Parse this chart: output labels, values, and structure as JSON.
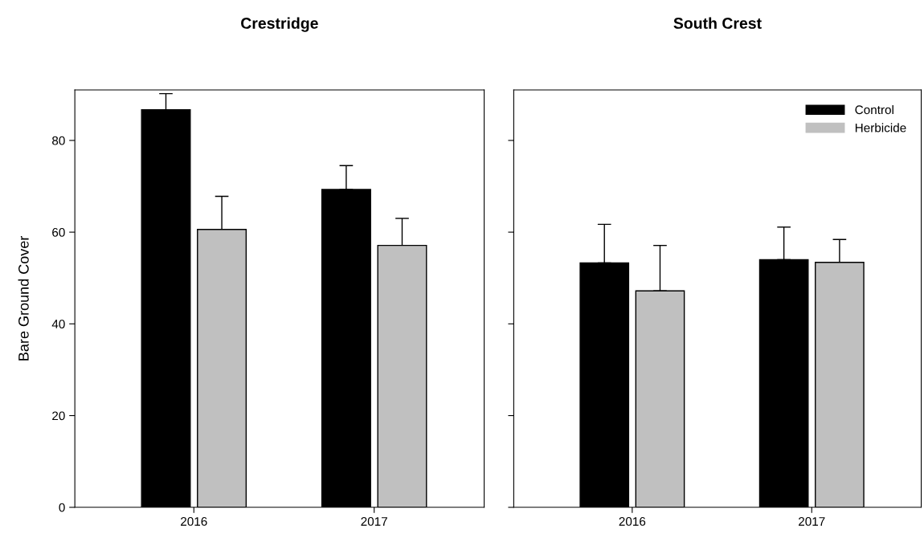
{
  "chart_data": [
    {
      "type": "bar",
      "title": "Crestridge",
      "ylabel": "Bare Ground Cover",
      "categories": [
        "2016",
        "2017"
      ],
      "ylim": [
        0,
        91
      ],
      "yticks": [
        0,
        20,
        40,
        60,
        80
      ],
      "grid": false,
      "legend": false,
      "series": [
        {
          "color": "#000000",
          "values": [
            86.7,
            69.3
          ],
          "errors": [
            [
              86.7,
              90.2
            ],
            [
              69.3,
              74.5
            ]
          ]
        },
        {
          "color": "#c0c0c0",
          "values": [
            60.6,
            57.1
          ],
          "errors": [
            [
              60.6,
              67.8
            ],
            [
              57.1,
              63.0
            ]
          ]
        }
      ]
    },
    {
      "type": "bar",
      "title": "South Crest",
      "categories": [
        "2016",
        "2017"
      ],
      "ylim": [
        0,
        91
      ],
      "yticks": [
        0,
        20,
        40,
        60,
        80
      ],
      "grid": false,
      "legend": "top right",
      "tick_labels": "x",
      "series": [
        {
          "name": "Control",
          "color": "#000000",
          "values": [
            53.3,
            54.0
          ],
          "errors": [
            [
              53.3,
              61.7
            ],
            [
              54.0,
              61.1
            ]
          ]
        },
        {
          "name": "Herbicide",
          "color": "#c0c0c0",
          "values": [
            47.2,
            53.4
          ],
          "errors": [
            [
              47.2,
              57.1
            ],
            [
              53.4,
              58.4
            ]
          ]
        }
      ]
    }
  ]
}
